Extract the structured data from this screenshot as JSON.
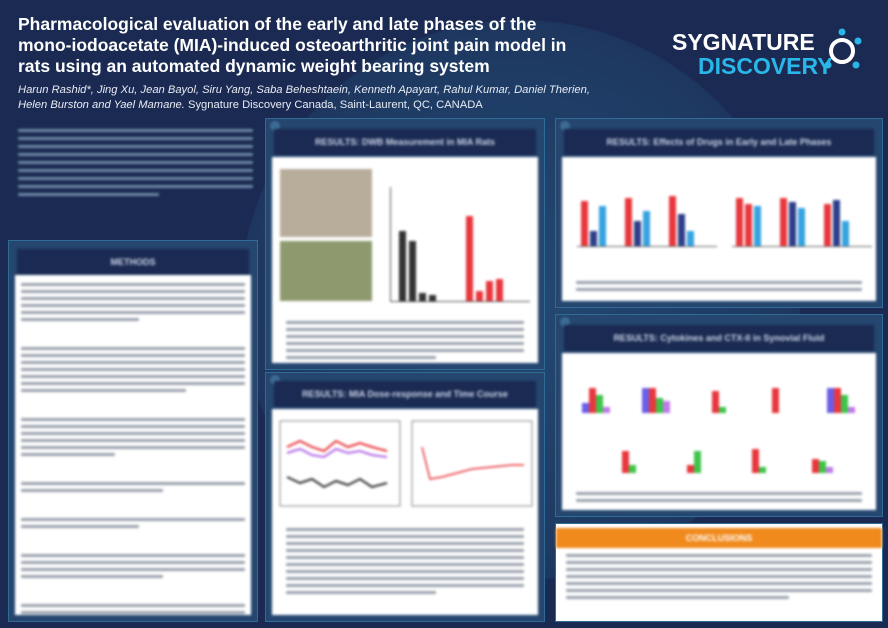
{
  "header": {
    "title": "Pharmacological evaluation of the early and late phases of the mono-iodoacetate (MIA)-induced osteoarthritic joint pain model in rats using an automated dynamic weight bearing system",
    "authors": "Harun Rashid*, Jing Xu, Jean Bayol, Siru Yang, Saba Beheshtaein, Kenneth Apayart, Rahul Kumar, Daniel Therien, Helen Burston and Yael Mamane.",
    "affiliation": "Sygnature Discovery Canada, Saint-Laurent, QC, CANADA"
  },
  "logo": {
    "line1": "SYGNATURE",
    "line2": "DISCOVERY",
    "colors": {
      "primary": "#ffffff",
      "accent": "#29b6e8"
    }
  },
  "sections": {
    "methods": "METHODS",
    "dwb": "RESULTS: DWB Measurement in MIA Rats",
    "dose": "RESULTS: MIA Dose-response and Time Course",
    "drugs": "RESULTS: Effects of Drugs in Early and Late Phases",
    "cytokines": "RESULTS: Cytokines and CTX-II in Synovial Fluid",
    "conclusions": "CONCLUSIONS"
  },
  "colors": {
    "background": "#1b2a52",
    "panel": "#24466f",
    "accent_orange": "#f08a1c"
  }
}
